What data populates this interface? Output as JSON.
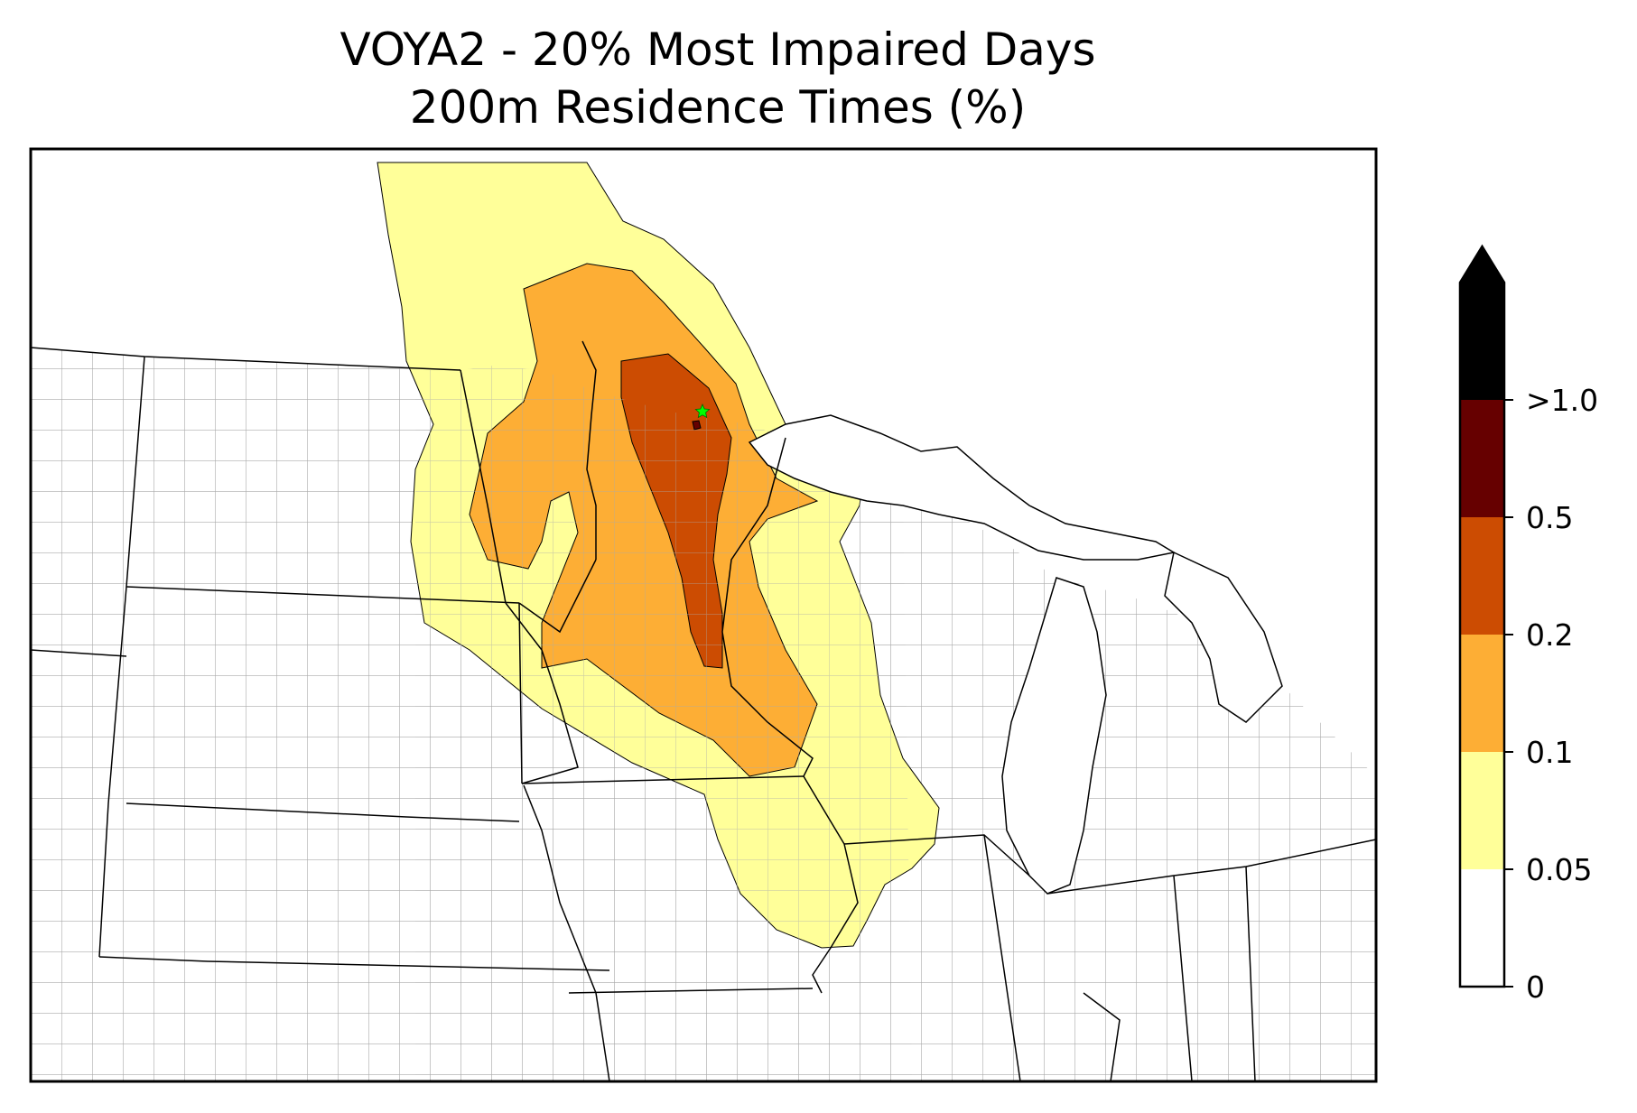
{
  "title": {
    "line1": "VOYA2 - 20% Most Impaired Days",
    "line2": "200m Residence Times (%)"
  },
  "colorbar": {
    "extend": "max",
    "bins": [
      {
        "from": "0",
        "to": "0.05",
        "color": "#ffffff"
      },
      {
        "from": "0.05",
        "to": "0.1",
        "color": "#ffff99"
      },
      {
        "from": "0.1",
        "to": "0.2",
        "color": "#fdae35"
      },
      {
        "from": "0.2",
        "to": "0.5",
        "color": "#cc4c02"
      },
      {
        "from": "0.5",
        "to": ">1.0",
        "color": "#660000"
      },
      {
        "from": ">1.0",
        "to": "",
        "color": "#000000"
      }
    ],
    "tick_labels": [
      "0",
      "0.05",
      "0.1",
      "0.2",
      "0.5",
      ">1.0"
    ]
  },
  "map": {
    "site_marker": {
      "name": "VOYA2",
      "symbol": "star",
      "color": "#00ff00"
    },
    "boundary_colors": {
      "state": "#000000",
      "county": "#999999"
    }
  }
}
